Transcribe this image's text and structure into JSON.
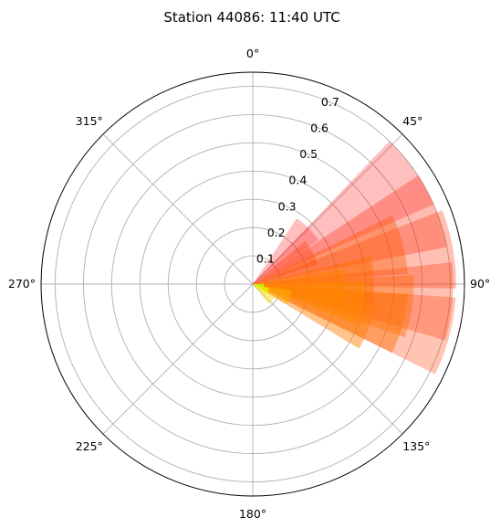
{
  "chart_data": {
    "type": "polar_bar",
    "title": "Station 44086: 11:40 UTC",
    "theta_direction": "clockwise",
    "theta_zero": "north",
    "theta_tick_labels": [
      "0°",
      "45°",
      "90°",
      "135°",
      "180°",
      "225°",
      "270°",
      "315°"
    ],
    "r_tick_labels": [
      "0.1",
      "0.2",
      "0.3",
      "0.4",
      "0.5",
      "0.6",
      "0.7"
    ],
    "r_ticks": [
      0.1,
      0.2,
      0.3,
      0.4,
      0.5,
      0.6,
      0.7
    ],
    "rlim": [
      0,
      0.75
    ],
    "grid": true,
    "bars": [
      {
        "direction": 45,
        "width": 22.5,
        "value": 0.28,
        "color": "#ff0000",
        "alpha": 0.25
      },
      {
        "direction": 55,
        "width": 22.5,
        "value": 0.7,
        "color": "#ff0000",
        "alpha": 0.25
      },
      {
        "direction": 68,
        "width": 22.5,
        "value": 0.7,
        "color": "#ff1a00",
        "alpha": 0.3
      },
      {
        "direction": 80,
        "width": 22.5,
        "value": 0.72,
        "color": "#ff2a00",
        "alpha": 0.3
      },
      {
        "direction": 95,
        "width": 22.5,
        "value": 0.71,
        "color": "#ff3000",
        "alpha": 0.3
      },
      {
        "direction": 105,
        "width": 22.5,
        "value": 0.72,
        "color": "#ff3a00",
        "alpha": 0.3
      },
      {
        "direction": 62,
        "width": 22.5,
        "value": 0.24,
        "color": "#ff3a00",
        "alpha": 0.35
      },
      {
        "direction": 75,
        "width": 22.5,
        "value": 0.55,
        "color": "#ff5a00",
        "alpha": 0.4
      },
      {
        "direction": 88,
        "width": 22.5,
        "value": 0.43,
        "color": "#ff6a00",
        "alpha": 0.45
      },
      {
        "direction": 98,
        "width": 22.5,
        "value": 0.57,
        "color": "#ff6a00",
        "alpha": 0.4
      },
      {
        "direction": 105,
        "width": 22.5,
        "value": 0.55,
        "color": "#ff7000",
        "alpha": 0.45
      },
      {
        "direction": 110,
        "width": 22.5,
        "value": 0.44,
        "color": "#ff7a00",
        "alpha": 0.45
      },
      {
        "direction": 92,
        "width": 22.5,
        "value": 0.33,
        "color": "#ff8000",
        "alpha": 0.5
      },
      {
        "direction": 100,
        "width": 22.5,
        "value": 0.4,
        "color": "#ff8a00",
        "alpha": 0.5
      },
      {
        "direction": 110,
        "width": 22.5,
        "value": 0.14,
        "color": "#ffb000",
        "alpha": 0.5
      },
      {
        "direction": 130,
        "width": 22.5,
        "value": 0.09,
        "color": "#ffd400",
        "alpha": 0.45
      },
      {
        "direction": 115,
        "width": 22.5,
        "value": 0.06,
        "color": "#e0ff00",
        "alpha": 0.7
      },
      {
        "direction": 100,
        "width": 22.5,
        "value": 0.04,
        "color": "#c0ff00",
        "alpha": 0.8
      }
    ]
  }
}
